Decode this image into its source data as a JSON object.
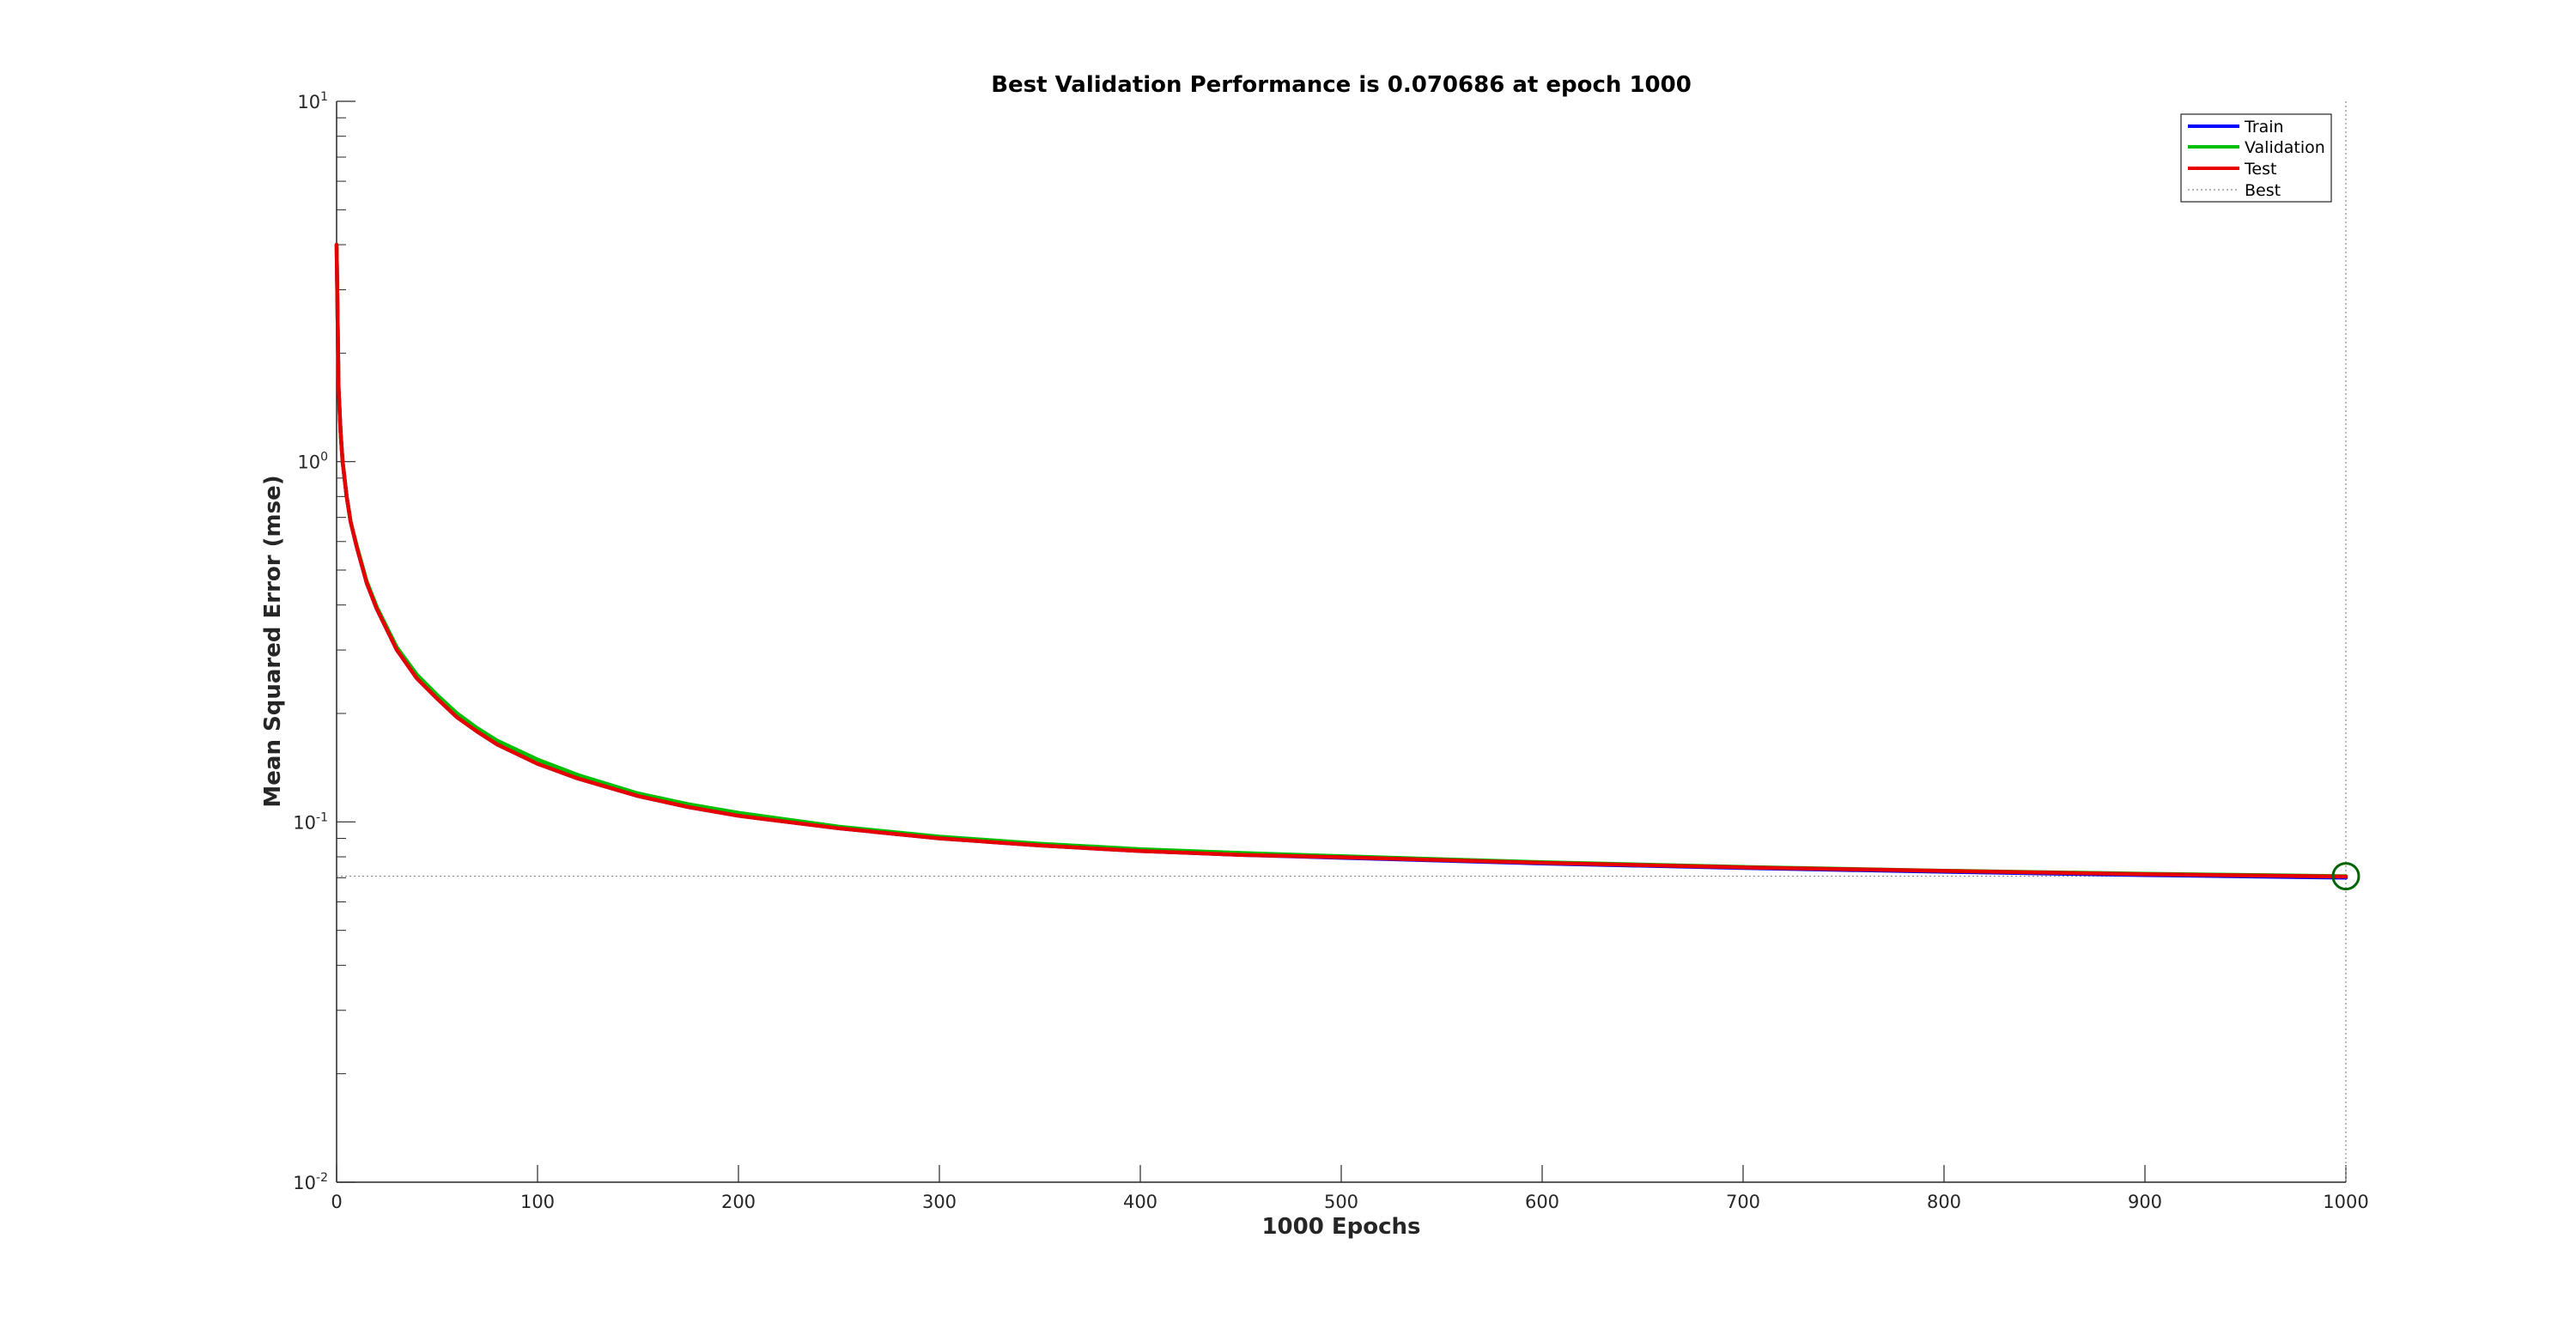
{
  "chart_data": {
    "type": "line",
    "title": "Best Validation Performance is 0.070686 at epoch 1000",
    "xlabel": "1000 Epochs",
    "ylabel": "Mean Squared Error  (mse)",
    "xlim": [
      0,
      1000
    ],
    "ylim": [
      0.01,
      10
    ],
    "yscale": "log",
    "grid": false,
    "legend_position": "top-right",
    "x_ticks": [
      0,
      100,
      200,
      300,
      400,
      500,
      600,
      700,
      800,
      900,
      1000
    ],
    "y_ticks": [
      {
        "value": 0.01,
        "base": "10",
        "exp": "-2"
      },
      {
        "value": 0.1,
        "base": "10",
        "exp": "-1"
      },
      {
        "value": 1,
        "base": "10",
        "exp": "0"
      },
      {
        "value": 10,
        "base": "10",
        "exp": "1"
      }
    ],
    "x": [
      0,
      1,
      2,
      3,
      5,
      7,
      10,
      15,
      20,
      30,
      40,
      50,
      60,
      70,
      80,
      100,
      120,
      150,
      175,
      200,
      250,
      300,
      350,
      400,
      450,
      500,
      600,
      700,
      800,
      900,
      1000
    ],
    "series": [
      {
        "name": "Train",
        "color": "#0000ff",
        "values": [
          4.0,
          1.6,
          1.2,
          1.0,
          0.8,
          0.68,
          0.58,
          0.46,
          0.39,
          0.3,
          0.25,
          0.22,
          0.195,
          0.178,
          0.164,
          0.145,
          0.132,
          0.118,
          0.11,
          0.104,
          0.096,
          0.09,
          0.086,
          0.083,
          0.081,
          0.0795,
          0.0767,
          0.0745,
          0.0727,
          0.0712,
          0.07
        ]
      },
      {
        "name": "Validation",
        "color": "#00bf00",
        "values": [
          4.0,
          1.6,
          1.2,
          1.0,
          0.8,
          0.68,
          0.585,
          0.465,
          0.395,
          0.305,
          0.256,
          0.225,
          0.2,
          0.182,
          0.168,
          0.149,
          0.135,
          0.12,
          0.112,
          0.106,
          0.097,
          0.091,
          0.087,
          0.084,
          0.082,
          0.0803,
          0.0773,
          0.075,
          0.0732,
          0.0718,
          0.070686
        ]
      },
      {
        "name": "Test",
        "color": "#e60000",
        "values": [
          4.0,
          1.6,
          1.2,
          1.0,
          0.8,
          0.68,
          0.58,
          0.46,
          0.39,
          0.3,
          0.25,
          0.22,
          0.195,
          0.178,
          0.164,
          0.145,
          0.132,
          0.118,
          0.11,
          0.104,
          0.096,
          0.09,
          0.086,
          0.083,
          0.081,
          0.0798,
          0.077,
          0.0748,
          0.0731,
          0.0716,
          0.0705
        ]
      }
    ],
    "best": {
      "name": "Best",
      "epoch": 1000,
      "value": 0.070686,
      "color": "#006400"
    }
  }
}
